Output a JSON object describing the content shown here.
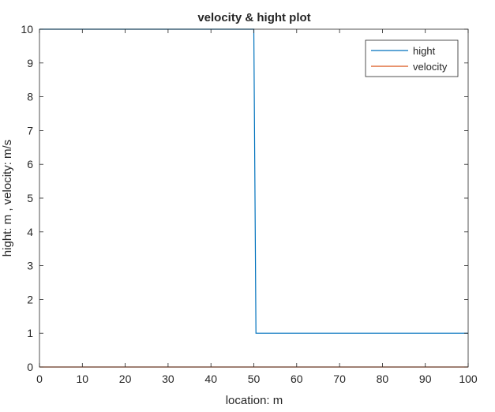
{
  "chart_data": {
    "type": "line",
    "title": "velocity & hight plot",
    "xlabel": "location: m",
    "ylabel": "hight: m , velocity: m/s",
    "xlim": [
      0,
      100
    ],
    "ylim": [
      0,
      10
    ],
    "xticks": [
      0,
      10,
      20,
      30,
      40,
      50,
      60,
      70,
      80,
      90,
      100
    ],
    "yticks": [
      0,
      1,
      2,
      3,
      4,
      5,
      6,
      7,
      8,
      9,
      10
    ],
    "grid": false,
    "legend_position": "top-right",
    "series": [
      {
        "name": "hight",
        "color": "#0072BD",
        "x": [
          0,
          50,
          50.5,
          100
        ],
        "y": [
          10,
          10,
          1,
          1
        ]
      },
      {
        "name": "velocity",
        "color": "#D95319",
        "x": [
          0,
          100
        ],
        "y": [
          0,
          0
        ]
      }
    ]
  }
}
